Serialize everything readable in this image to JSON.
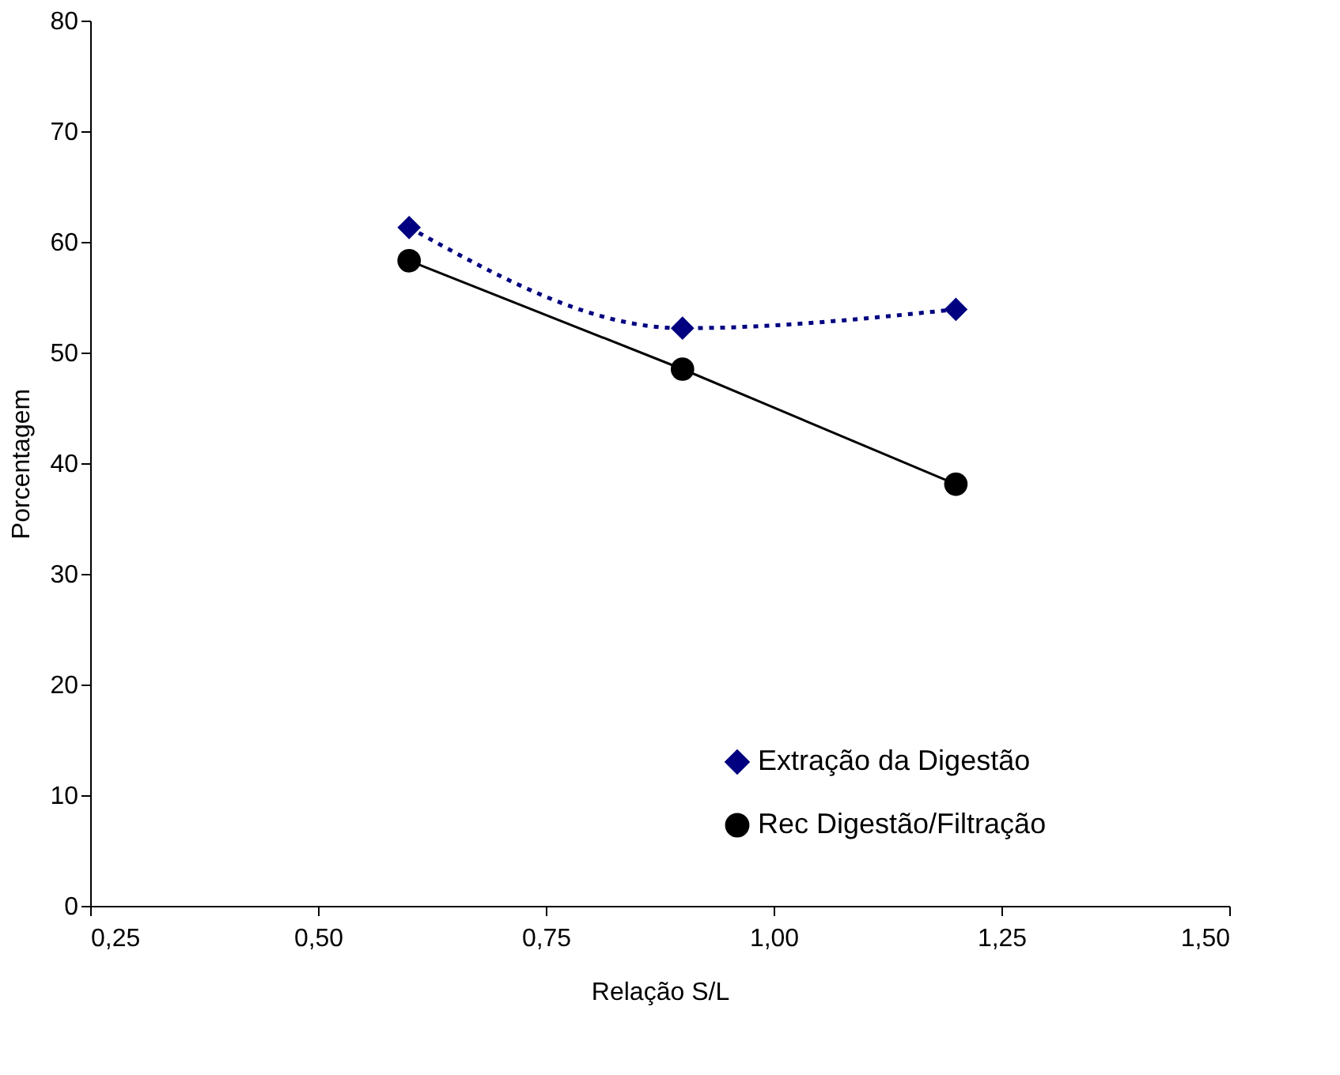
{
  "chart_data": {
    "type": "line",
    "xlabel": "Relação S/L",
    "ylabel": "Porcentagem",
    "x": [
      0.6,
      0.9,
      1.2
    ],
    "series": [
      {
        "name": "Extração da Digestão",
        "color": "#000080",
        "values": [
          61.3,
          52.2,
          53.9
        ],
        "marker": "diamond",
        "line_style": "dotted"
      },
      {
        "name": "Rec Digestão/Filtração",
        "color": "#000000",
        "values": [
          58.3,
          48.5,
          38.1
        ],
        "marker": "circle",
        "line_style": "solid"
      }
    ],
    "xlim": [
      0.25,
      1.5
    ],
    "xticks": [
      {
        "value": 0.25,
        "label": "0,25"
      },
      {
        "value": 0.5,
        "label": "0,50"
      },
      {
        "value": 0.75,
        "label": "0,75"
      },
      {
        "value": 1.0,
        "label": "1,00"
      },
      {
        "value": 1.25,
        "label": "1,25"
      },
      {
        "value": 1.5,
        "label": "1,50"
      }
    ],
    "ylim": [
      0,
      80
    ],
    "yticks": [
      0,
      10,
      20,
      30,
      40,
      50,
      60,
      70,
      80
    ],
    "grid": false,
    "legend": "bottom right"
  }
}
